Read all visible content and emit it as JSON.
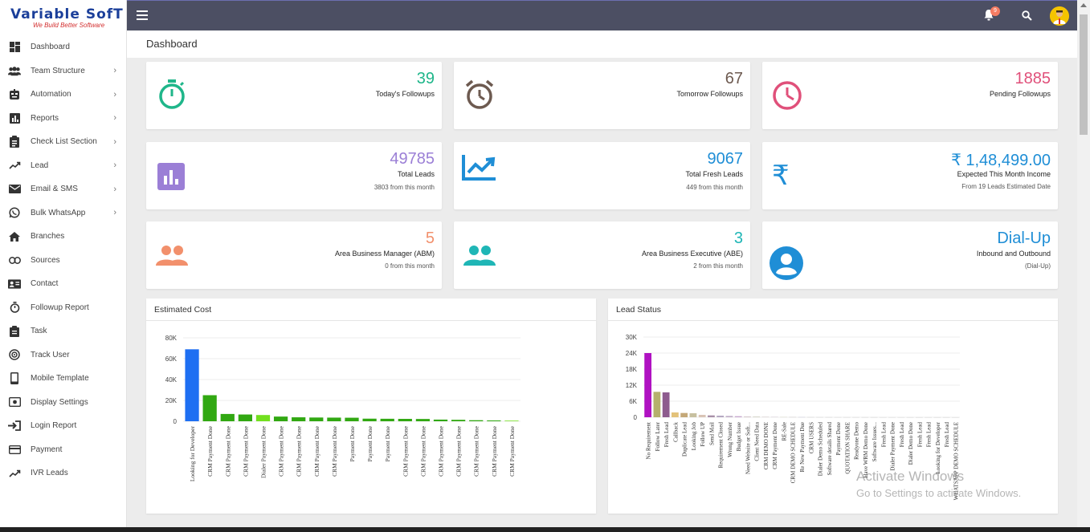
{
  "brand": {
    "title_a": "Variable ",
    "title_b": "SofT",
    "tagline": "We Build Better Software"
  },
  "sidebar": {
    "items": [
      {
        "label": "Dashboard",
        "icon": "dashboard-icon",
        "chevron": false
      },
      {
        "label": "Team Structure",
        "icon": "team-icon",
        "chevron": true
      },
      {
        "label": "Automation",
        "icon": "automation-icon",
        "chevron": true
      },
      {
        "label": "Reports",
        "icon": "reports-icon",
        "chevron": true
      },
      {
        "label": "Check List Section",
        "icon": "checklist-icon",
        "chevron": true
      },
      {
        "label": "Lead",
        "icon": "trend-icon",
        "chevron": true
      },
      {
        "label": "Email & SMS",
        "icon": "mail-icon",
        "chevron": true
      },
      {
        "label": "Bulk WhatsApp",
        "icon": "whatsapp-icon",
        "chevron": true
      },
      {
        "label": "Branches",
        "icon": "home-icon",
        "chevron": false
      },
      {
        "label": "Sources",
        "icon": "link-icon",
        "chevron": false
      },
      {
        "label": "Contact",
        "icon": "contact-card-icon",
        "chevron": false
      },
      {
        "label": "Followup Report",
        "icon": "timer-icon",
        "chevron": false
      },
      {
        "label": "Task",
        "icon": "clipboard-icon",
        "chevron": false
      },
      {
        "label": "Track User",
        "icon": "track-icon",
        "chevron": false
      },
      {
        "label": "Mobile Template",
        "icon": "mobile-icon",
        "chevron": false
      },
      {
        "label": "Display Settings",
        "icon": "display-icon",
        "chevron": false
      },
      {
        "label": "Login Report",
        "icon": "login-icon",
        "chevron": false
      },
      {
        "label": "Payment",
        "icon": "payment-icon",
        "chevron": false
      },
      {
        "label": "IVR Leads",
        "icon": "ivr-icon",
        "chevron": false
      }
    ]
  },
  "topbar": {
    "notification_count": "9"
  },
  "page": {
    "title": "Dashboard"
  },
  "cards": {
    "today": {
      "value": "39",
      "label": "Today's Followups",
      "color": "#1fb68a"
    },
    "tomorrow": {
      "value": "67",
      "label": "Tomorrow Followups",
      "color": "#6d5a50"
    },
    "pending": {
      "value": "1885",
      "label": "Pending Followups",
      "color": "#e0507a"
    },
    "total_leads": {
      "value": "49785",
      "label": "Total Leads",
      "sub": "3803 from this month",
      "color": "#9b7fd6"
    },
    "fresh_leads": {
      "value": "9067",
      "label": "Total Fresh Leads",
      "sub": "449 from this month",
      "color": "#1f8ed6"
    },
    "income": {
      "value": "₹ 1,48,499.00",
      "label": "Expected This Month Income",
      "sub": "From 19 Leads Estimated Date",
      "color": "#1f8ed6",
      "symbol": "₹"
    },
    "abm": {
      "value": "5",
      "label": "Area Business Manager (ABM)",
      "sub": "0 from this month",
      "color": "#f2906c"
    },
    "abe": {
      "value": "3",
      "label": "Area Business Executive (ABE)",
      "sub": "2 from this month",
      "color": "#1fb6b6"
    },
    "dialup": {
      "value": "Dial-Up",
      "label": "Inbound and Outbound",
      "sub": "(Dial-Up)",
      "color": "#1f8ed6"
    }
  },
  "panels": {
    "cost_title": "Estimated Cost",
    "status_title": "Lead Status"
  },
  "watermark": {
    "line1": "Activate Windows",
    "line2": "Go to Settings to activate Windows."
  },
  "chart_data": [
    {
      "type": "bar",
      "title": "Estimated Cost",
      "ylim": [
        0,
        80000
      ],
      "yticks": [
        "0",
        "20K",
        "40K",
        "60K",
        "80K"
      ],
      "categories": [
        "Looking for Developer",
        "CRM Payment Done",
        "CRM Payment Done",
        "CRM Payment Done",
        "Dialer Payment Done",
        "CRM Payment Done",
        "CRM Payment Done",
        "CRM Payment Done",
        "CRM Payment Done",
        "Payment Done",
        "Payment Done",
        "Payment Done",
        "CRM Payment Done",
        "CRM Payment Done",
        "CRM Payment Done",
        "CRM Payment Done",
        "CRM Payment Done",
        "CRM Payment Done",
        "CRM Payment Done"
      ],
      "values": [
        69000,
        25000,
        7000,
        6500,
        6000,
        4500,
        3800,
        3600,
        3500,
        3400,
        2500,
        2400,
        2300,
        2200,
        1600,
        1400,
        1000,
        800,
        600
      ],
      "colors": [
        "#1e6ff2",
        "#31a812",
        "#31a812",
        "#31a812",
        "#72e01e",
        "#31a812",
        "#31a812",
        "#31a812",
        "#31a812",
        "#31a812",
        "#31a812",
        "#31a812",
        "#31a812",
        "#31a812",
        "#31a812",
        "#31a812",
        "#31a812",
        "#31a812",
        "#72e01e"
      ]
    },
    {
      "type": "bar",
      "title": "Lead Status",
      "ylim": [
        0,
        30000
      ],
      "yticks": [
        "0",
        "6K",
        "12K",
        "18K",
        "24K",
        "30K"
      ],
      "categories": [
        "No Requirement",
        "Follow Later",
        "Fresh Lead",
        "Callback",
        "Duplicate Lead",
        "Looking Job",
        "Follow UP",
        "Send Mail",
        "Requirement Closed",
        "Wrong Number",
        "Budget Issue",
        "Need Website or Soft...",
        "Client Need Data",
        "CRM DEMO DONE",
        "CRM Payment Done",
        "RE-Sale",
        "CRM DEMO SCHEDULE",
        "Re New Payment Due",
        "CRM USERS",
        "Dialer Demo Scheduled",
        "Software details Shared",
        "Payment Done",
        "QUOTATION SHARE",
        "Readyone Demo",
        "Have WRM Demo Done",
        "Software Issues...",
        "Fresh Lead",
        "Dialer Payment Done",
        "Fresh Lead",
        "Dialer Demo Done",
        "Fresh Lead",
        "Fresh Lead",
        "Looking for Developer",
        "Fresh Lead",
        "WHATSAPP DEMO SCHEDULE"
      ],
      "values": [
        24000,
        9500,
        9300,
        1800,
        1600,
        1500,
        900,
        700,
        600,
        500,
        400,
        300,
        250,
        200,
        150,
        120,
        100,
        80,
        70,
        60,
        50,
        45,
        40,
        35,
        30,
        28,
        25,
        22,
        20,
        18,
        16,
        14,
        12,
        10,
        8
      ],
      "colors": [
        "#b012c2",
        "#b5b06c",
        "#8e5c8e",
        "#e3c27a",
        "#c4a878",
        "#c7c0a0",
        "#d9c4b6",
        "#a890a8",
        "#b5a8c2",
        "#c0b0c8",
        "#c8a8d0",
        "#d5c8cc",
        "#cfcfc0",
        "#d8d0d0",
        "#d0c8d0",
        "#d8d8c8",
        "#d0c8c8",
        "#c8c8d8",
        "#d0d0d0",
        "#d0d0d0",
        "#d0d0d0",
        "#d0d0d0",
        "#d0d0d0",
        "#d0d0d0",
        "#d0d0d0",
        "#d0d0d0",
        "#d0d0d0",
        "#d0d0d0",
        "#d0d0d0",
        "#d0d0d0",
        "#d0d0d0",
        "#d0d0d0",
        "#d0d0d0",
        "#d0d0d0",
        "#d0d0d0"
      ]
    }
  ]
}
